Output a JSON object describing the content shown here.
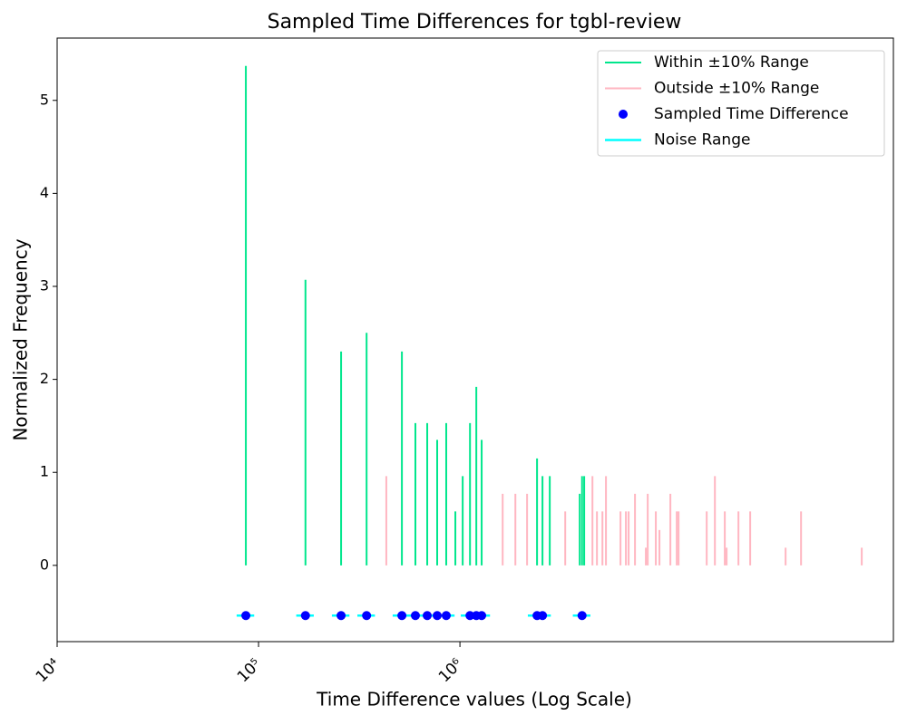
{
  "chart_data": {
    "type": "vlines",
    "title": "Sampled Time Differences for tgbl-review",
    "xlabel": "Time Difference values (Log Scale)",
    "ylabel": "Normalized Frequency",
    "xscale": "log",
    "xlim": [
      10000,
      142000000
    ],
    "ylim": [
      -0.82,
      5.67
    ],
    "xticks": [
      {
        "value": 10000,
        "label": "10⁴"
      },
      {
        "value": 100000,
        "label": "10⁵"
      },
      {
        "value": 1000000,
        "label": "10⁶"
      }
    ],
    "yticks": [
      0,
      1,
      2,
      3,
      4,
      5
    ],
    "legend": "upper right",
    "series": [
      {
        "name": "Within ±10% Range",
        "color": "#00e68c",
        "kind": "vlines",
        "x": [
          86500,
          171000,
          257000,
          344000,
          515000,
          601000,
          688000,
          771000,
          855000,
          949000,
          1032000,
          1122000,
          1206000,
          1282000,
          2415000,
          2570000,
          2793000,
          3934000,
          4040000,
          4140000
        ],
        "values": [
          5.37,
          3.07,
          2.3,
          2.5,
          2.3,
          1.53,
          1.53,
          1.35,
          1.53,
          0.58,
          0.96,
          1.53,
          1.92,
          1.35,
          1.15,
          0.96,
          0.96,
          0.77,
          0.96,
          0.96
        ]
      },
      {
        "name": "Outside ±10% Range",
        "color": "#ffb6c1",
        "kind": "vlines",
        "x": [
          431000,
          1630000,
          1885000,
          2155000,
          3333000,
          4550000,
          4790000,
          5100000,
          5310000,
          6270000,
          6670000,
          6880000,
          7400000,
          8380000,
          8560000,
          9390000,
          9790000,
          11090000,
          11930000,
          12180000,
          16800000,
          18450000,
          20660000,
          21090000,
          24150000,
          27620000,
          41400000,
          49400000,
          98900000
        ],
        "values": [
          0.96,
          0.77,
          0.77,
          0.77,
          0.58,
          0.96,
          0.58,
          0.58,
          0.96,
          0.58,
          0.58,
          0.58,
          0.77,
          0.19,
          0.77,
          0.58,
          0.38,
          0.77,
          0.58,
          0.58,
          0.58,
          0.96,
          0.58,
          0.19,
          0.58,
          0.58,
          0.19,
          0.58,
          0.19
        ]
      },
      {
        "name": "Sampled Time Difference",
        "color": "#0000ff",
        "kind": "points",
        "x": [
          86500,
          171000,
          257000,
          344000,
          515000,
          601000,
          688000,
          771000,
          855000,
          1122000,
          1206000,
          1282000,
          2415000,
          2570000,
          4040000
        ],
        "values": [
          -0.54,
          -0.54,
          -0.54,
          -0.54,
          -0.54,
          -0.54,
          -0.54,
          -0.54,
          -0.54,
          -0.54,
          -0.54,
          -0.54,
          -0.54,
          -0.54,
          -0.54
        ]
      },
      {
        "name": "Noise Range",
        "color": "#00ffff",
        "kind": "hlines",
        "xmin": [
          77850,
          153900,
          231300,
          309600,
          463500,
          540900,
          619200,
          693900,
          769500,
          1009800,
          1085400,
          1153800,
          2173500,
          2313000,
          3636000
        ],
        "xmax": [
          95150,
          188100,
          282700,
          378400,
          566500,
          661100,
          756800,
          848100,
          940500,
          1234200,
          1326600,
          1410200,
          2656500,
          2827000,
          4444000
        ],
        "values": [
          -0.54,
          -0.54,
          -0.54,
          -0.54,
          -0.54,
          -0.54,
          -0.54,
          -0.54,
          -0.54,
          -0.54,
          -0.54,
          -0.54,
          -0.54,
          -0.54,
          -0.54
        ]
      }
    ]
  }
}
